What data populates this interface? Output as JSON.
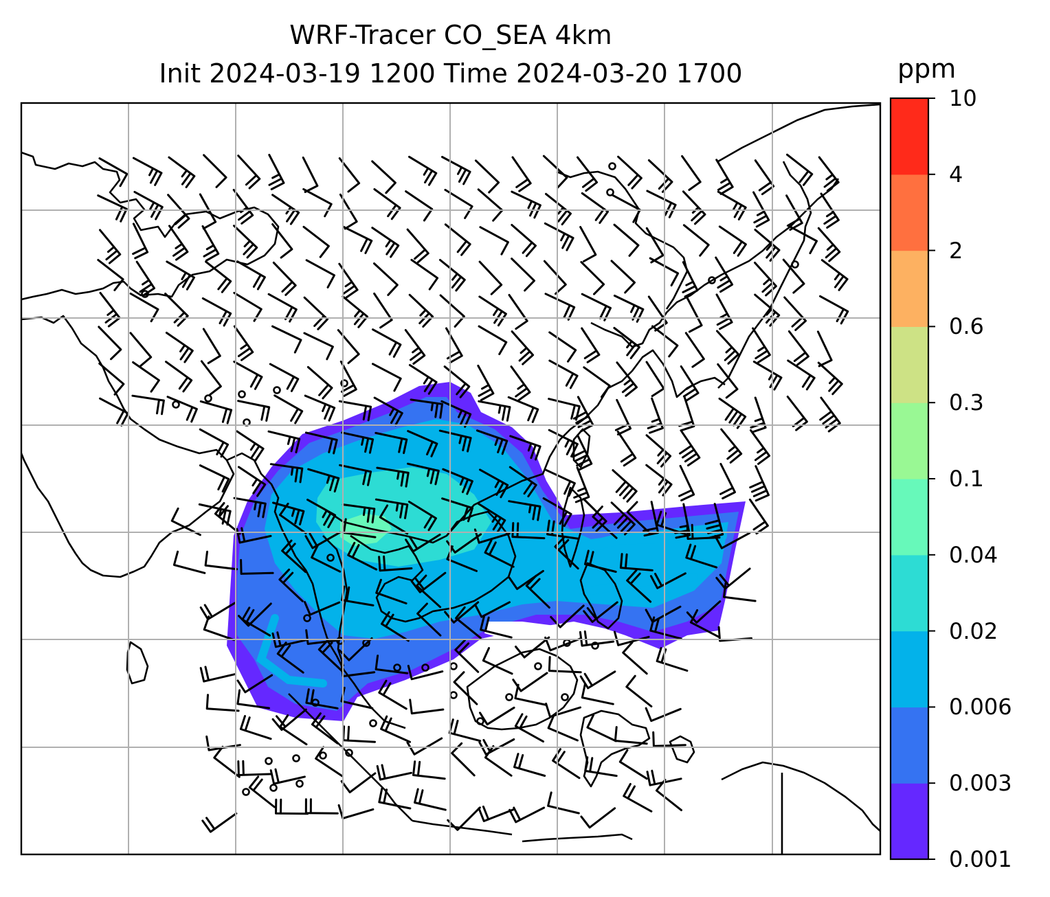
{
  "title": {
    "line1": "WRF-Tracer CO_SEA 4km",
    "line2": "Init 2024-03-19 1200 Time 2024-03-20 1700"
  },
  "map": {
    "features": [
      "coastlines",
      "gridlines",
      "wind-barbs",
      "tracer-concentration-fill"
    ],
    "gridline_color": "#b0b0b0"
  },
  "colorbar": {
    "unit": "ppm",
    "ticks": [
      "0.001",
      "0.003",
      "0.006",
      "0.02",
      "0.04",
      "0.1",
      "0.3",
      "0.6",
      "2",
      "4",
      "10"
    ],
    "colors": [
      "#6528ff",
      "#3573f2",
      "#03b2ea",
      "#2ddcd4",
      "#67f9ba",
      "#99f894",
      "#cde285",
      "#fdb161",
      "#ff703f",
      "#ff2a1a"
    ]
  }
}
